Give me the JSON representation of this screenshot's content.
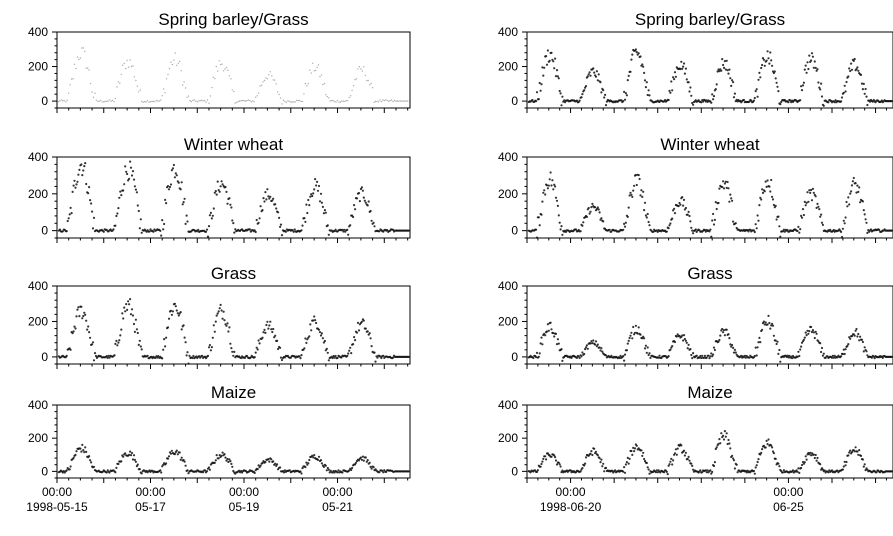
{
  "chart_data": [
    {
      "type": "scatter",
      "title": "Spring barley/Grass",
      "yticks": [
        0,
        200,
        400
      ],
      "ylim": [
        -40,
        400
      ],
      "x_unit": "day from 1998-05-15 00:00",
      "xlim": [
        0,
        7.55
      ],
      "xticks": [],
      "day_peaks": [
        280,
        230,
        240,
        220,
        150,
        195,
        180
      ],
      "style": "faint"
    },
    {
      "type": "scatter",
      "title": "Winter wheat",
      "yticks": [
        0,
        200,
        400
      ],
      "ylim": [
        -40,
        400
      ],
      "x_unit": "day from 1998-05-15 00:00",
      "xlim": [
        0,
        7.55
      ],
      "xticks": [],
      "day_peaks": [
        360,
        330,
        340,
        255,
        195,
        240,
        200
      ],
      "style": "dense"
    },
    {
      "type": "scatter",
      "title": "Grass",
      "yticks": [
        0,
        200,
        400
      ],
      "ylim": [
        -40,
        400
      ],
      "x_unit": "day from 1998-05-15 00:00",
      "xlim": [
        0,
        7.55
      ],
      "xticks": [],
      "day_peaks": [
        260,
        290,
        290,
        260,
        175,
        200,
        185
      ],
      "style": "dense"
    },
    {
      "type": "scatter",
      "title": "Maize",
      "yticks": [
        0,
        200,
        400
      ],
      "ylim": [
        -40,
        400
      ],
      "x_unit": "day from 1998-05-15 00:00",
      "xlim": [
        0,
        7.55
      ],
      "xticks": [
        {
          "x": 0,
          "line1": "00:00",
          "line2": "1998-05-15"
        },
        {
          "x": 2,
          "line1": "00:00",
          "line2": "05-17"
        },
        {
          "x": 4,
          "line1": "00:00",
          "line2": "05-19"
        },
        {
          "x": 6,
          "line1": "00:00",
          "line2": "05-21"
        }
      ],
      "day_peaks": [
        140,
        110,
        120,
        100,
        70,
        90,
        80
      ],
      "style": "dense"
    },
    {
      "type": "scatter",
      "title": "Spring barley/Grass",
      "yticks": [
        0,
        200,
        400
      ],
      "ylim": [
        -40,
        400
      ],
      "x_unit": "day from 1998-06-19 00:00",
      "xlim": [
        0,
        8.4
      ],
      "xticks": [],
      "day_peaks": [
        270,
        170,
        280,
        210,
        220,
        255,
        240,
        210
      ],
      "style": "dense"
    },
    {
      "type": "scatter",
      "title": "Winter wheat",
      "yticks": [
        0,
        200,
        400
      ],
      "ylim": [
        -40,
        400
      ],
      "x_unit": "day from 1998-06-19 00:00",
      "xlim": [
        0,
        8.4
      ],
      "xticks": [],
      "day_peaks": [
        280,
        130,
        270,
        160,
        260,
        270,
        200,
        250
      ],
      "style": "dense"
    },
    {
      "type": "scatter",
      "title": "Grass",
      "yticks": [
        0,
        200,
        400
      ],
      "ylim": [
        -40,
        400
      ],
      "x_unit": "day from 1998-06-19 00:00",
      "xlim": [
        0,
        8.4
      ],
      "xticks": [],
      "day_peaks": [
        170,
        80,
        160,
        120,
        140,
        200,
        150,
        140
      ],
      "style": "dense"
    },
    {
      "type": "scatter",
      "title": "Maize",
      "yticks": [
        0,
        200,
        400
      ],
      "ylim": [
        -40,
        400
      ],
      "x_unit": "day from 1998-06-19 00:00",
      "xlim": [
        0,
        8.4
      ],
      "xticks": [
        {
          "x": 1,
          "line1": "00:00",
          "line2": "1998-06-20"
        },
        {
          "x": 6,
          "line1": "00:00",
          "line2": "06-25"
        }
      ],
      "day_peaks": [
        100,
        120,
        150,
        140,
        210,
        170,
        110,
        130
      ],
      "style": "dense"
    }
  ]
}
